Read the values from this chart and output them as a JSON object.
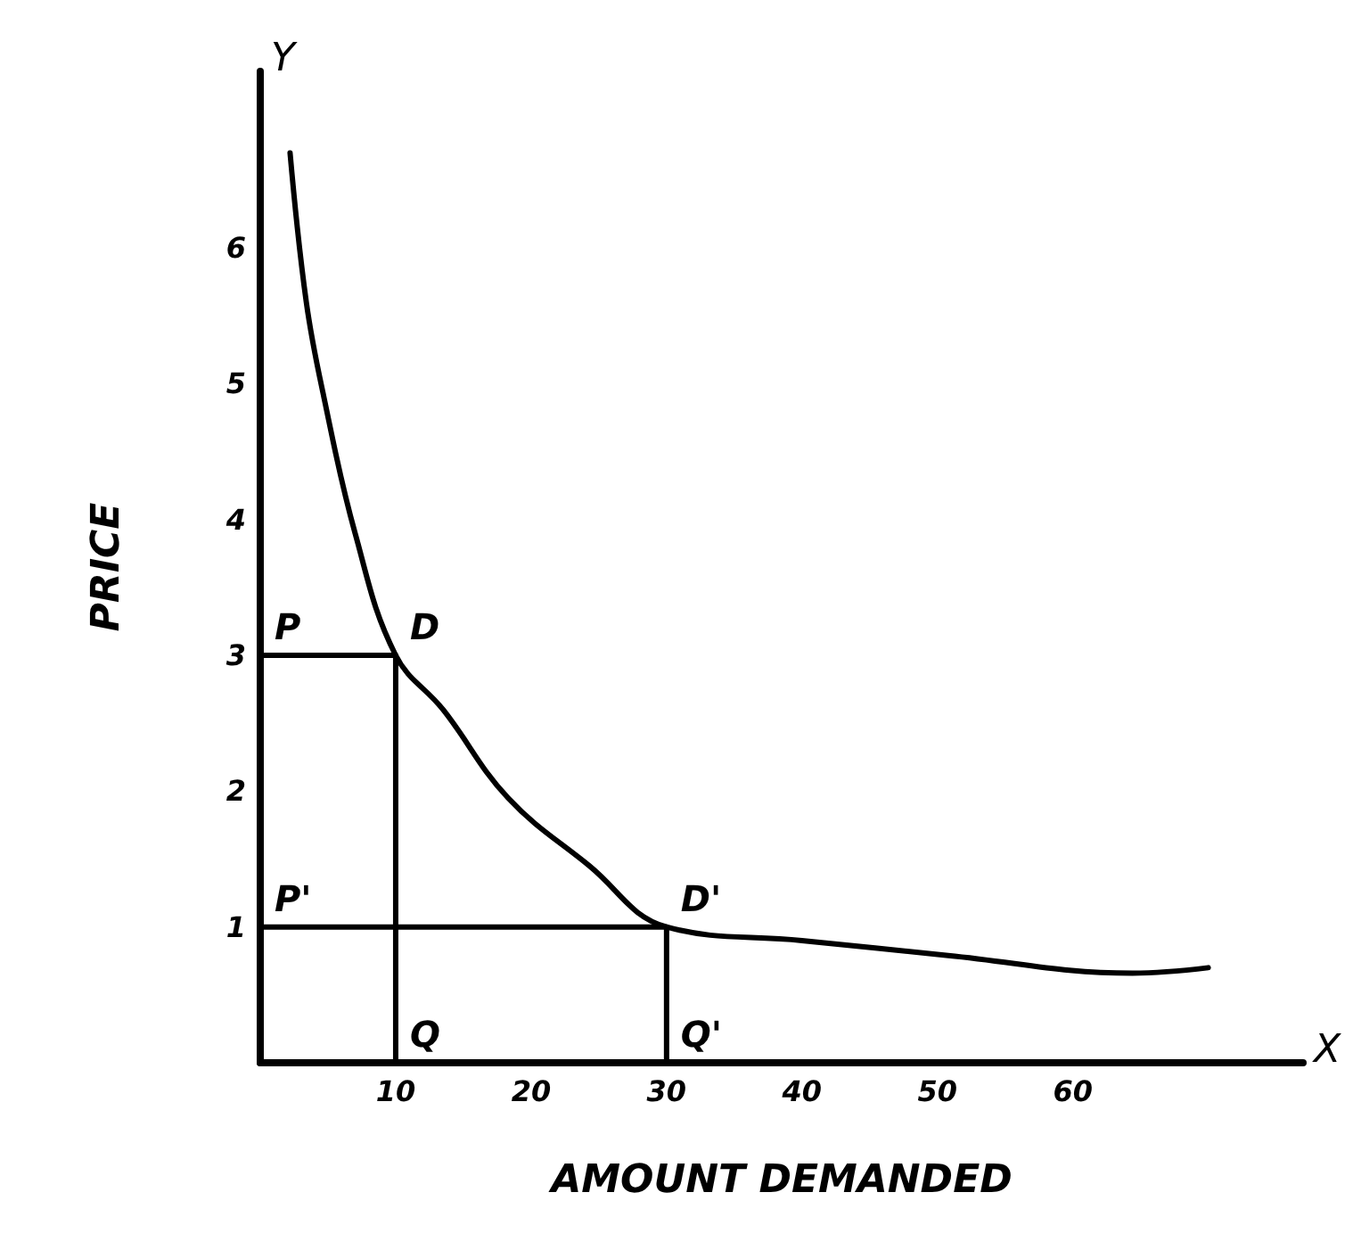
{
  "chart_data": {
    "type": "line",
    "xlabel": "AMOUNT DEMANDED",
    "ylabel": "PRICE",
    "xlim": [
      0,
      77
    ],
    "ylim": [
      0,
      7.3
    ],
    "xticks": [
      10,
      20,
      30,
      40,
      50,
      60
    ],
    "yticks": [
      1,
      2,
      3,
      4,
      5,
      6
    ],
    "grid": false,
    "marker": "none",
    "line_style": "solid",
    "series": [
      {
        "color": "#000000",
        "x": [
          2.2,
          3.4,
          4.7,
          7.0,
          10,
          13.5,
          18.3,
          24.3,
          30,
          40,
          50.8,
          64.4,
          70
        ],
        "values": [
          6.7,
          5.6,
          4.9,
          3.9,
          3,
          2.6,
          1.95,
          1.45,
          1,
          0.9,
          0.79,
          0.66,
          0.7
        ]
      },
      {
        "color": "#000000",
        "x": [
          0,
          10,
          10
        ],
        "values": [
          3,
          3,
          0
        ]
      },
      {
        "color": "#000000",
        "x": [
          0,
          30,
          30
        ],
        "values": [
          1,
          1,
          0
        ]
      }
    ],
    "annotations": [
      {
        "text": "P",
        "x": 0,
        "y": 3
      },
      {
        "text": "D",
        "x": 10,
        "y": 3
      },
      {
        "text": "P'",
        "x": 0,
        "y": 1
      },
      {
        "text": "D'",
        "x": 30,
        "y": 1
      },
      {
        "text": "Q",
        "x": 10,
        "y": 0
      },
      {
        "text": "Q'",
        "x": 30,
        "y": 0
      },
      "Y",
      "X"
    ]
  }
}
